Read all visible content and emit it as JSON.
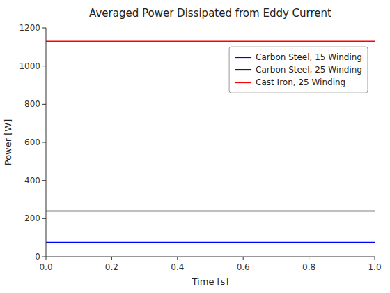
{
  "chart_data": {
    "type": "hline",
    "title": "Averaged Power Dissipated from Eddy Current",
    "xlabel": "Time [s]",
    "ylabel": "Power [W]",
    "xlim": [
      0,
      1
    ],
    "ylim": [
      0,
      1200
    ],
    "xticks": [
      {
        "value": 0,
        "label": "0.0"
      },
      0.2,
      0.4,
      0.6,
      0.8,
      {
        "value": 1,
        "label": "1.0"
      }
    ],
    "yticks": [
      0,
      200,
      400,
      600,
      800,
      1000,
      1200
    ],
    "series": [
      {
        "name": "Carbon Steel, 15 Winding",
        "color": "#0000FF",
        "values": [
          75
        ]
      },
      {
        "name": "Carbon Steel, 25 Winding",
        "color": "#000000",
        "values": [
          240
        ]
      },
      {
        "name": "Cast Iron, 25 Winding",
        "color": "#FF0000",
        "values": [
          1130
        ]
      }
    ],
    "legend": "upper right",
    "grid": false
  }
}
